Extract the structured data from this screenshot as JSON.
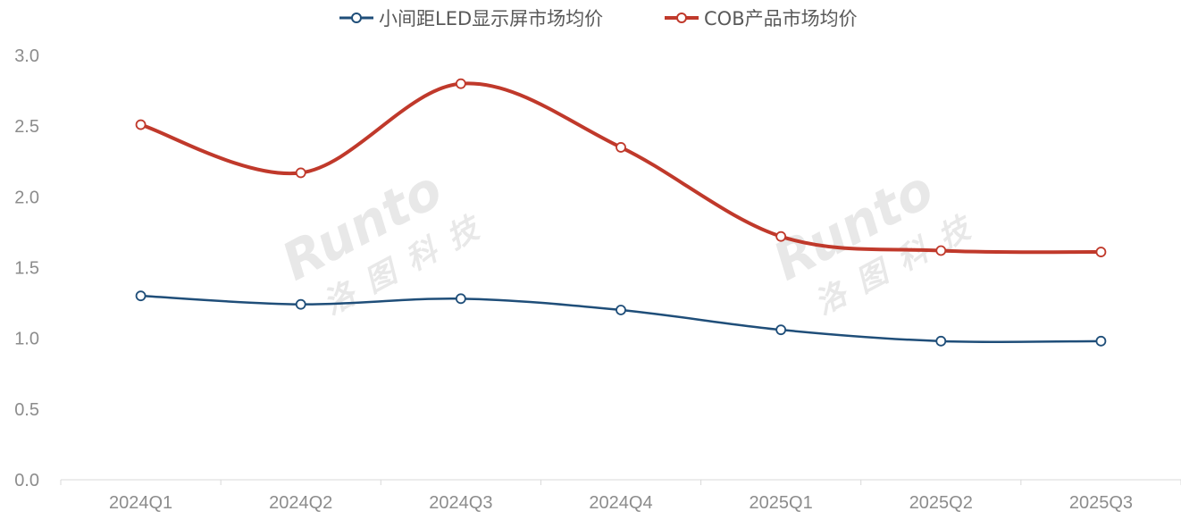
{
  "chart_data": {
    "type": "line",
    "title": "",
    "xlabel": "",
    "ylabel": "",
    "categories": [
      "2024Q1",
      "2024Q2",
      "2024Q3",
      "2024Q4",
      "2025Q1",
      "2025Q2",
      "2025Q3"
    ],
    "ylim": [
      0,
      3.0
    ],
    "yticks": [
      "0.0",
      "0.5",
      "1.0",
      "1.5",
      "2.0",
      "2.5",
      "3.0"
    ],
    "grid": false,
    "legend_position": "top",
    "series": [
      {
        "name": "小间距LED显示屏市场均价",
        "values": [
          1.3,
          1.24,
          1.28,
          1.2,
          1.06,
          0.98,
          0.98
        ],
        "color": "#1f4e79"
      },
      {
        "name": "COB产品市场均价",
        "values": [
          2.51,
          2.17,
          2.8,
          2.35,
          1.72,
          1.62,
          1.61
        ],
        "color": "#c0392b"
      }
    ],
    "watermark": {
      "brand": "Runto",
      "chinese": "洛图科技"
    }
  }
}
